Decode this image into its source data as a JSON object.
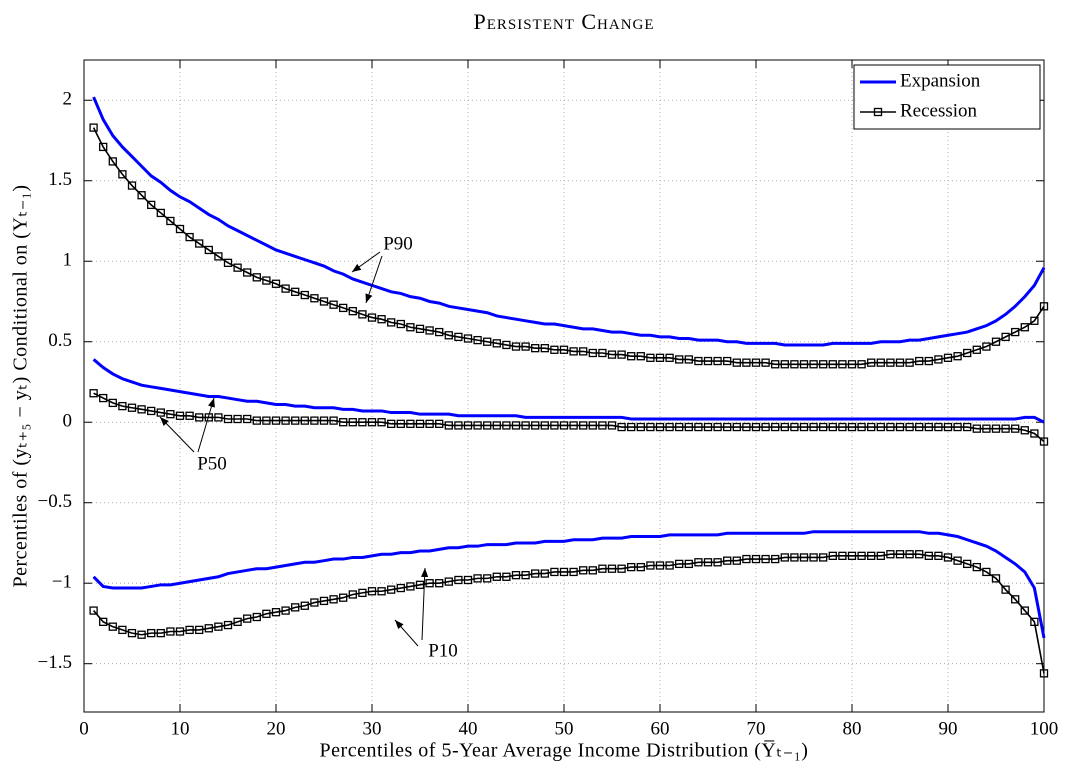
{
  "chart_data": {
    "type": "line",
    "title": "Persistent Change",
    "xlabel": "Percentiles of 5-Year Average Income Distribution (Y̅ₜ₋₁)",
    "ylabel": "Percentiles of (yₜ₊₅ − yₜ) Conditional on (Yₜ₋₁)",
    "x": [
      1,
      2,
      3,
      4,
      5,
      6,
      7,
      8,
      9,
      10,
      11,
      12,
      13,
      14,
      15,
      16,
      17,
      18,
      19,
      20,
      21,
      22,
      23,
      24,
      25,
      26,
      27,
      28,
      29,
      30,
      31,
      32,
      33,
      34,
      35,
      36,
      37,
      38,
      39,
      40,
      41,
      42,
      43,
      44,
      45,
      46,
      47,
      48,
      49,
      50,
      51,
      52,
      53,
      54,
      55,
      56,
      57,
      58,
      59,
      60,
      61,
      62,
      63,
      64,
      65,
      66,
      67,
      68,
      69,
      70,
      71,
      72,
      73,
      74,
      75,
      76,
      77,
      78,
      79,
      80,
      81,
      82,
      83,
      84,
      85,
      86,
      87,
      88,
      89,
      90,
      91,
      92,
      93,
      94,
      95,
      96,
      97,
      98,
      99,
      100
    ],
    "series": [
      {
        "name": "Expansion",
        "color": "#0000ff",
        "marker": "none",
        "values": [
          [
            2.02,
            1.88,
            1.78,
            1.71,
            1.65,
            1.59,
            1.53,
            1.49,
            1.44,
            1.4,
            1.37,
            1.33,
            1.29,
            1.26,
            1.22,
            1.19,
            1.16,
            1.13,
            1.1,
            1.07,
            1.05,
            1.03,
            1.01,
            0.99,
            0.97,
            0.94,
            0.92,
            0.89,
            0.87,
            0.85,
            0.83,
            0.81,
            0.8,
            0.78,
            0.77,
            0.75,
            0.74,
            0.72,
            0.71,
            0.7,
            0.69,
            0.68,
            0.66,
            0.65,
            0.64,
            0.63,
            0.62,
            0.61,
            0.61,
            0.6,
            0.59,
            0.58,
            0.58,
            0.57,
            0.56,
            0.56,
            0.55,
            0.54,
            0.54,
            0.53,
            0.53,
            0.52,
            0.52,
            0.51,
            0.51,
            0.51,
            0.5,
            0.5,
            0.49,
            0.49,
            0.49,
            0.49,
            0.48,
            0.48,
            0.48,
            0.48,
            0.48,
            0.49,
            0.49,
            0.49,
            0.49,
            0.49,
            0.5,
            0.5,
            0.5,
            0.51,
            0.51,
            0.52,
            0.53,
            0.54,
            0.55,
            0.56,
            0.58,
            0.6,
            0.63,
            0.67,
            0.72,
            0.78,
            0.85,
            0.96
          ],
          [
            0.39,
            0.34,
            0.3,
            0.27,
            0.25,
            0.23,
            0.22,
            0.21,
            0.2,
            0.19,
            0.18,
            0.17,
            0.16,
            0.16,
            0.15,
            0.14,
            0.13,
            0.13,
            0.12,
            0.11,
            0.11,
            0.1,
            0.1,
            0.09,
            0.09,
            0.09,
            0.08,
            0.08,
            0.07,
            0.07,
            0.07,
            0.06,
            0.06,
            0.06,
            0.05,
            0.05,
            0.05,
            0.05,
            0.04,
            0.04,
            0.04,
            0.04,
            0.04,
            0.04,
            0.04,
            0.03,
            0.03,
            0.03,
            0.03,
            0.03,
            0.03,
            0.03,
            0.03,
            0.03,
            0.03,
            0.03,
            0.02,
            0.02,
            0.02,
            0.02,
            0.02,
            0.02,
            0.02,
            0.02,
            0.02,
            0.02,
            0.02,
            0.02,
            0.02,
            0.02,
            0.02,
            0.02,
            0.02,
            0.02,
            0.02,
            0.02,
            0.02,
            0.02,
            0.02,
            0.02,
            0.02,
            0.02,
            0.02,
            0.02,
            0.02,
            0.02,
            0.02,
            0.02,
            0.02,
            0.02,
            0.02,
            0.02,
            0.02,
            0.02,
            0.02,
            0.02,
            0.02,
            0.03,
            0.03,
            0.0
          ],
          [
            -0.96,
            -1.02,
            -1.03,
            -1.03,
            -1.03,
            -1.03,
            -1.02,
            -1.01,
            -1.01,
            -1.0,
            -0.99,
            -0.98,
            -0.97,
            -0.96,
            -0.94,
            -0.93,
            -0.92,
            -0.91,
            -0.91,
            -0.9,
            -0.89,
            -0.88,
            -0.87,
            -0.87,
            -0.86,
            -0.85,
            -0.85,
            -0.84,
            -0.84,
            -0.83,
            -0.82,
            -0.82,
            -0.81,
            -0.81,
            -0.8,
            -0.8,
            -0.79,
            -0.78,
            -0.78,
            -0.77,
            -0.77,
            -0.76,
            -0.76,
            -0.76,
            -0.75,
            -0.75,
            -0.75,
            -0.74,
            -0.74,
            -0.74,
            -0.73,
            -0.73,
            -0.73,
            -0.72,
            -0.72,
            -0.72,
            -0.71,
            -0.71,
            -0.71,
            -0.71,
            -0.7,
            -0.7,
            -0.7,
            -0.7,
            -0.7,
            -0.7,
            -0.69,
            -0.69,
            -0.69,
            -0.69,
            -0.69,
            -0.69,
            -0.69,
            -0.69,
            -0.69,
            -0.68,
            -0.68,
            -0.68,
            -0.68,
            -0.68,
            -0.68,
            -0.68,
            -0.68,
            -0.68,
            -0.68,
            -0.68,
            -0.68,
            -0.69,
            -0.69,
            -0.7,
            -0.71,
            -0.73,
            -0.75,
            -0.77,
            -0.8,
            -0.84,
            -0.88,
            -0.93,
            -1.03,
            -1.34
          ]
        ]
      },
      {
        "name": "Recession",
        "color": "#000000",
        "marker": "square",
        "values": [
          [
            1.83,
            1.71,
            1.62,
            1.54,
            1.47,
            1.41,
            1.35,
            1.3,
            1.25,
            1.2,
            1.15,
            1.11,
            1.07,
            1.03,
            0.99,
            0.96,
            0.93,
            0.9,
            0.88,
            0.86,
            0.83,
            0.81,
            0.79,
            0.77,
            0.75,
            0.73,
            0.71,
            0.69,
            0.67,
            0.65,
            0.64,
            0.62,
            0.61,
            0.59,
            0.58,
            0.57,
            0.56,
            0.54,
            0.53,
            0.52,
            0.51,
            0.5,
            0.49,
            0.48,
            0.47,
            0.47,
            0.46,
            0.46,
            0.45,
            0.45,
            0.44,
            0.44,
            0.43,
            0.43,
            0.42,
            0.42,
            0.41,
            0.41,
            0.4,
            0.4,
            0.4,
            0.39,
            0.39,
            0.38,
            0.38,
            0.38,
            0.38,
            0.37,
            0.37,
            0.37,
            0.37,
            0.36,
            0.36,
            0.36,
            0.36,
            0.36,
            0.36,
            0.36,
            0.36,
            0.36,
            0.36,
            0.37,
            0.37,
            0.37,
            0.37,
            0.37,
            0.38,
            0.38,
            0.39,
            0.4,
            0.41,
            0.43,
            0.45,
            0.47,
            0.5,
            0.53,
            0.56,
            0.59,
            0.63,
            0.72
          ],
          [
            0.18,
            0.15,
            0.12,
            0.1,
            0.09,
            0.08,
            0.07,
            0.06,
            0.05,
            0.04,
            0.04,
            0.03,
            0.03,
            0.03,
            0.02,
            0.02,
            0.02,
            0.01,
            0.01,
            0.01,
            0.01,
            0.01,
            0.01,
            0.01,
            0.01,
            0.01,
            0.0,
            0.0,
            0.0,
            0.0,
            0.0,
            -0.01,
            -0.01,
            -0.01,
            -0.01,
            -0.01,
            -0.01,
            -0.02,
            -0.02,
            -0.02,
            -0.02,
            -0.02,
            -0.02,
            -0.02,
            -0.02,
            -0.02,
            -0.02,
            -0.02,
            -0.02,
            -0.02,
            -0.02,
            -0.02,
            -0.02,
            -0.02,
            -0.02,
            -0.03,
            -0.03,
            -0.03,
            -0.03,
            -0.03,
            -0.03,
            -0.03,
            -0.03,
            -0.03,
            -0.03,
            -0.03,
            -0.03,
            -0.03,
            -0.03,
            -0.03,
            -0.03,
            -0.03,
            -0.03,
            -0.03,
            -0.03,
            -0.03,
            -0.03,
            -0.03,
            -0.03,
            -0.03,
            -0.03,
            -0.03,
            -0.03,
            -0.03,
            -0.03,
            -0.03,
            -0.03,
            -0.03,
            -0.03,
            -0.03,
            -0.03,
            -0.03,
            -0.04,
            -0.04,
            -0.04,
            -0.04,
            -0.04,
            -0.05,
            -0.07,
            -0.12
          ],
          [
            -1.17,
            -1.24,
            -1.27,
            -1.29,
            -1.31,
            -1.32,
            -1.31,
            -1.31,
            -1.3,
            -1.3,
            -1.29,
            -1.29,
            -1.28,
            -1.27,
            -1.26,
            -1.24,
            -1.22,
            -1.21,
            -1.19,
            -1.18,
            -1.17,
            -1.15,
            -1.14,
            -1.12,
            -1.11,
            -1.1,
            -1.09,
            -1.07,
            -1.06,
            -1.05,
            -1.05,
            -1.04,
            -1.03,
            -1.02,
            -1.01,
            -1.0,
            -1.0,
            -0.99,
            -0.98,
            -0.98,
            -0.97,
            -0.97,
            -0.96,
            -0.96,
            -0.95,
            -0.95,
            -0.94,
            -0.94,
            -0.93,
            -0.93,
            -0.93,
            -0.92,
            -0.92,
            -0.91,
            -0.91,
            -0.91,
            -0.9,
            -0.9,
            -0.89,
            -0.89,
            -0.89,
            -0.88,
            -0.88,
            -0.87,
            -0.87,
            -0.87,
            -0.86,
            -0.86,
            -0.85,
            -0.85,
            -0.85,
            -0.85,
            -0.84,
            -0.84,
            -0.84,
            -0.84,
            -0.84,
            -0.83,
            -0.83,
            -0.83,
            -0.83,
            -0.83,
            -0.83,
            -0.82,
            -0.82,
            -0.82,
            -0.82,
            -0.83,
            -0.83,
            -0.84,
            -0.86,
            -0.88,
            -0.9,
            -0.93,
            -0.97,
            -1.04,
            -1.1,
            -1.17,
            -1.24,
            -1.56
          ]
        ]
      }
    ],
    "annotations": [
      {
        "text": "P90"
      },
      {
        "text": "P50"
      },
      {
        "text": "P10"
      }
    ],
    "xlim": [
      0,
      100
    ],
    "xticks": [
      0,
      10,
      20,
      30,
      40,
      50,
      60,
      70,
      80,
      90,
      100
    ],
    "ylim": [
      -1.8,
      2.25
    ],
    "yticks": [
      {
        "value": -1.5,
        "label": "−1.5"
      },
      {
        "value": -1,
        "label": "−1"
      },
      {
        "value": -0.5,
        "label": "−0.5"
      },
      0,
      0.5,
      1,
      1.5,
      2
    ],
    "grid": true,
    "legend": "upper right"
  }
}
